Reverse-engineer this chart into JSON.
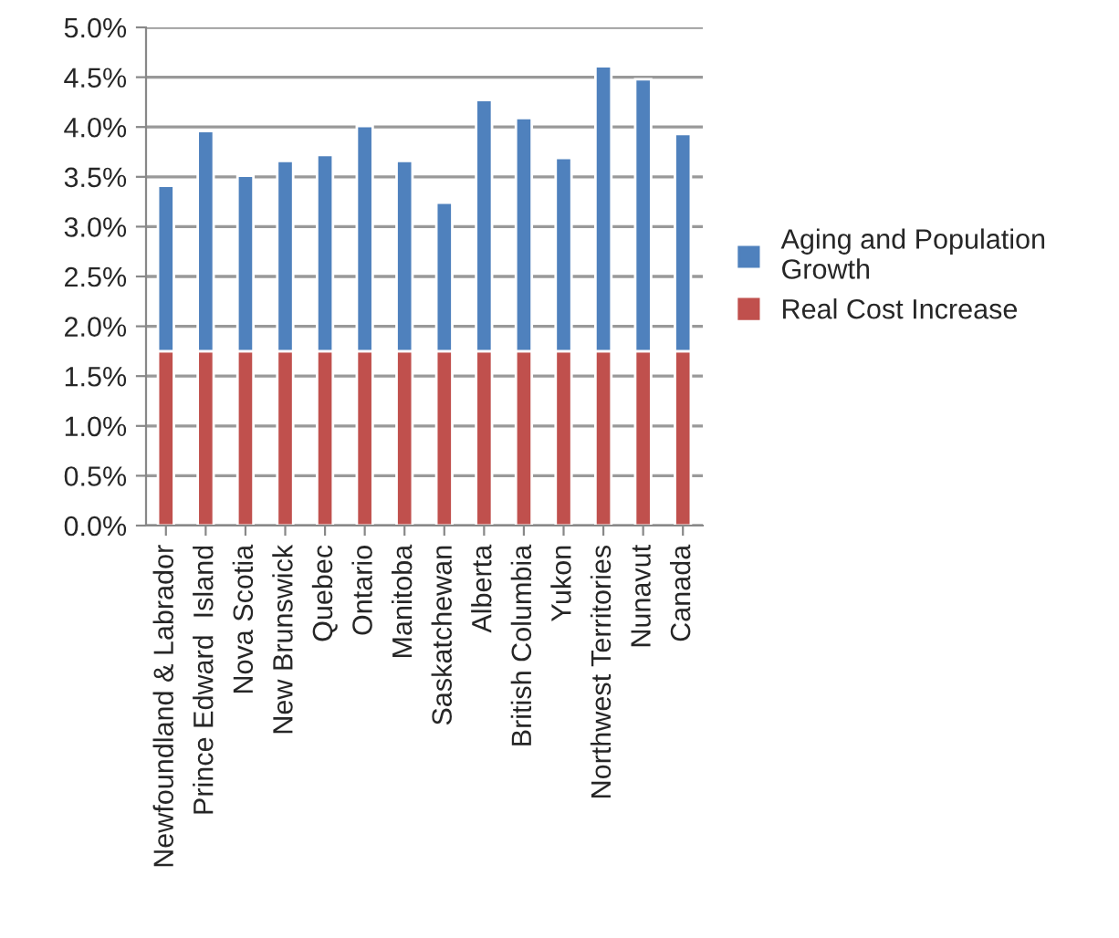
{
  "chart_data": {
    "type": "bar",
    "stacked": true,
    "categories": [
      "Newfoundland & Labrador",
      "Prince Edward  Island",
      "Nova Scotia",
      "New Brunswick",
      "Quebec",
      "Ontario",
      "Manitoba",
      "Saskatchewan",
      "Alberta",
      "British Columbia",
      "Yukon",
      "Northwest Territories",
      "Nunavut",
      "Canada"
    ],
    "series": [
      {
        "name": "Real Cost Increase",
        "color": "#c0504d",
        "values": [
          1.75,
          1.75,
          1.75,
          1.75,
          1.75,
          1.75,
          1.75,
          1.75,
          1.75,
          1.75,
          1.75,
          1.75,
          1.75,
          1.75
        ]
      },
      {
        "name": "Aging and Population Growth",
        "color": "#4f81bd",
        "values": [
          1.66,
          2.21,
          1.76,
          1.91,
          1.97,
          2.26,
          1.91,
          1.49,
          2.52,
          2.34,
          1.94,
          2.86,
          2.73,
          2.18
        ]
      }
    ],
    "ylim": [
      0,
      5
    ],
    "yticks": [
      {
        "value": 0,
        "label": "0.0%"
      },
      {
        "value": 0.5,
        "label": "0.5%"
      },
      {
        "value": 1,
        "label": "1.0%"
      },
      {
        "value": 1.5,
        "label": "1.5%"
      },
      {
        "value": 2,
        "label": "2.0%"
      },
      {
        "value": 2.5,
        "label": "2.5%"
      },
      {
        "value": 3,
        "label": "3.0%"
      },
      {
        "value": 3.5,
        "label": "3.5%"
      },
      {
        "value": 4,
        "label": "4.0%"
      },
      {
        "value": 4.5,
        "label": "4.5%"
      },
      {
        "value": 5,
        "label": "5.0%"
      }
    ],
    "grid": "y",
    "legend": "right"
  }
}
